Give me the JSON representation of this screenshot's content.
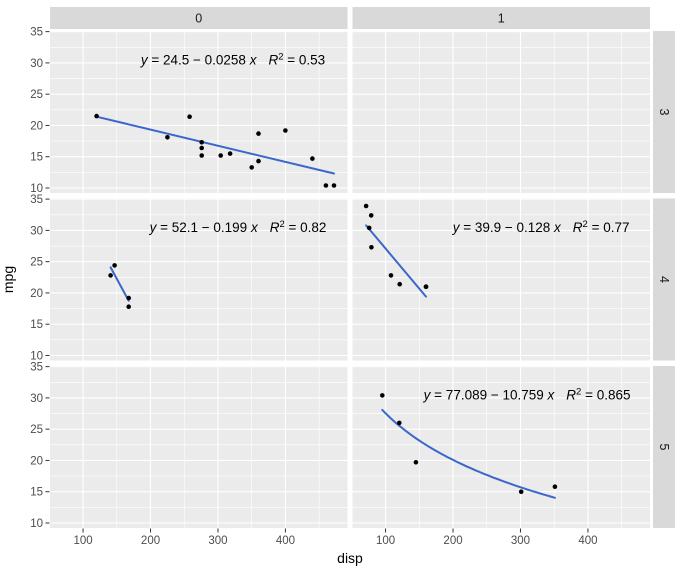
{
  "chart_data": {
    "type": "scatter",
    "title": "",
    "xlabel": "disp",
    "ylabel": "mpg",
    "xlim": [
      51,
      492
    ],
    "ylim": [
      9.2,
      35.1
    ],
    "x_ticks": [
      100,
      200,
      300,
      400
    ],
    "y_ticks": [
      35,
      30,
      25,
      20,
      15,
      10
    ],
    "x_minor_ticks": [
      150,
      250,
      350,
      450
    ],
    "y_minor_ticks": [
      12.5,
      17.5,
      22.5,
      27.5,
      32.5
    ],
    "grid": true,
    "legend_position": "none",
    "facet_col_labels": [
      "0",
      "1"
    ],
    "facet_row_labels": [
      "3",
      "4",
      "5"
    ],
    "colors": {
      "panel_bg": "#EBEBEB",
      "strip_bg": "#D9D9D9",
      "grid": "#FFFFFF",
      "point": "#000000",
      "smooth_line": "#3A67CB",
      "tick_text": "#4D4D4D",
      "strip_text": "#1A1A1A",
      "axis_title_text": "#000000",
      "tick_mark": "#333333"
    },
    "facets": [
      {
        "col": "0",
        "row": "3",
        "points": [
          [
            120.1,
            21.5
          ],
          [
            225,
            18.1
          ],
          [
            258,
            21.4
          ],
          [
            275.8,
            16.4
          ],
          [
            275.8,
            17.3
          ],
          [
            275.8,
            15.2
          ],
          [
            304,
            15.2
          ],
          [
            318,
            15.5
          ],
          [
            350,
            13.3
          ],
          [
            360,
            18.7
          ],
          [
            360,
            14.3
          ],
          [
            400,
            19.2
          ],
          [
            440,
            14.7
          ],
          [
            460,
            10.4
          ],
          [
            472,
            10.4
          ]
        ],
        "fit": {
          "kind": "linear",
          "intercept": 24.5,
          "slope": -0.0258,
          "x_start": 120.1,
          "x_end": 472
        },
        "annotation": {
          "equation": "y = 24.5 − 0.0258 x",
          "r2": "R² = 0.53",
          "x_frac": 0.615,
          "y_value": 30.5
        }
      },
      {
        "col": "0",
        "row": "4",
        "points": [
          [
            140.8,
            22.8
          ],
          [
            146.7,
            24.4
          ],
          [
            167.6,
            19.2
          ],
          [
            167.6,
            17.8
          ]
        ],
        "fit": {
          "kind": "linear",
          "intercept": 52.1,
          "slope": -0.199,
          "x_start": 140.8,
          "x_end": 167.6
        },
        "annotation": {
          "equation": "y = 52.1 − 0.199 x",
          "r2": "R² = 0.82",
          "x_frac": 0.632,
          "y_value": 30.5
        }
      },
      {
        "col": "1",
        "row": "4",
        "points": [
          [
            71.1,
            33.9
          ],
          [
            75.7,
            30.4
          ],
          [
            78.7,
            32.4
          ],
          [
            79,
            27.3
          ],
          [
            108,
            22.8
          ],
          [
            121,
            21.4
          ],
          [
            160,
            21
          ],
          [
            160,
            21
          ]
        ],
        "fit": {
          "kind": "linear",
          "intercept": 39.9,
          "slope": -0.128,
          "x_start": 71.1,
          "x_end": 160
        },
        "annotation": {
          "equation": "y = 39.9 − 0.128 x",
          "r2": "R² = 0.77",
          "x_frac": 0.634,
          "y_value": 30.5
        }
      },
      {
        "col": "1",
        "row": "5",
        "points": [
          [
            95.1,
            30.4
          ],
          [
            120.3,
            26
          ],
          [
            145,
            19.7
          ],
          [
            301,
            15
          ],
          [
            351,
            15.8
          ]
        ],
        "fit": {
          "kind": "log",
          "intercept": 77.089,
          "slope": -10.759,
          "x_start": 95.1,
          "x_end": 351
        },
        "annotation": {
          "equation": "y = 77.089 − 10.759 x",
          "r2": "R² = 0.865",
          "x_frac": 0.587,
          "y_value": 30.5
        }
      }
    ]
  }
}
